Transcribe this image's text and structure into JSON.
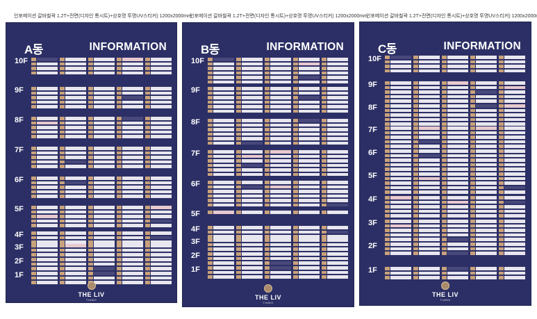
{
  "boards": [
    {
      "caption": "인포메이션 갈바철곽 1.2T+전면(디자인 통시트)+상호명 투명UV스티커) 1200x2000mm",
      "dong": "A동",
      "info": "INFORMATION",
      "floors": [
        {
          "label": "10F",
          "rows": 4
        },
        {
          "label": "9F",
          "rows": 5
        },
        {
          "label": "8F",
          "rows": 5
        },
        {
          "label": "7F",
          "rows": 5
        },
        {
          "label": "6F",
          "rows": 5
        },
        {
          "label": "5F",
          "rows": 5
        },
        {
          "label": "4F",
          "rows": 3
        },
        {
          "label": "3F",
          "rows": 3
        },
        {
          "label": "2F",
          "rows": 3
        },
        {
          "label": "1F",
          "rows": 3
        }
      ],
      "logo": {
        "brand": "THE LIV",
        "sub": "TIAMO"
      }
    },
    {
      "caption": "인포메이션 갈바철곽 1.2T+전면(디자인 통시트)+상호명 투명UV스티커) 1200x2000mm",
      "dong": "B동",
      "info": "INFORMATION",
      "floors": [
        {
          "label": "10F",
          "rows": 6
        },
        {
          "label": "9F",
          "rows": 6
        },
        {
          "label": "8F",
          "rows": 6
        },
        {
          "label": "7F",
          "rows": 6
        },
        {
          "label": "6F",
          "rows": 6
        },
        {
          "label": "5F",
          "rows": 1
        },
        {
          "label": "4F",
          "rows": 3
        },
        {
          "label": "3F",
          "rows": 3
        },
        {
          "label": "2F",
          "rows": 3
        },
        {
          "label": "1F",
          "rows": 3
        }
      ],
      "logo": {
        "brand": "THE LIV",
        "sub": "TIAMO"
      }
    },
    {
      "caption": "인포메이션 갈바철곽 1.2T+전면(디자인 통시트)+상호명 투명UV스티커) 1200x2000mm",
      "dong": "C동",
      "info": "INFORMATION",
      "floors": [
        {
          "label": "10F",
          "rows": 4
        },
        {
          "label": "9F",
          "rows": 5
        },
        {
          "label": "8F",
          "rows": 5
        },
        {
          "label": "7F",
          "rows": 5
        },
        {
          "label": "6F",
          "rows": 5
        },
        {
          "label": "5F",
          "rows": 5
        },
        {
          "label": "4F",
          "rows": 5
        },
        {
          "label": "3F",
          "rows": 5
        },
        {
          "label": "2F",
          "rows": 3
        },
        {
          "label": "1F",
          "rows": 3
        }
      ],
      "logo": {
        "brand": "THE LIV",
        "sub": "TIAMO"
      }
    }
  ],
  "colors": {
    "panel": "#2c2f65",
    "number_tag": "#c9a27b",
    "name_strip": "#e8e7ef",
    "text": "#ffffff"
  }
}
